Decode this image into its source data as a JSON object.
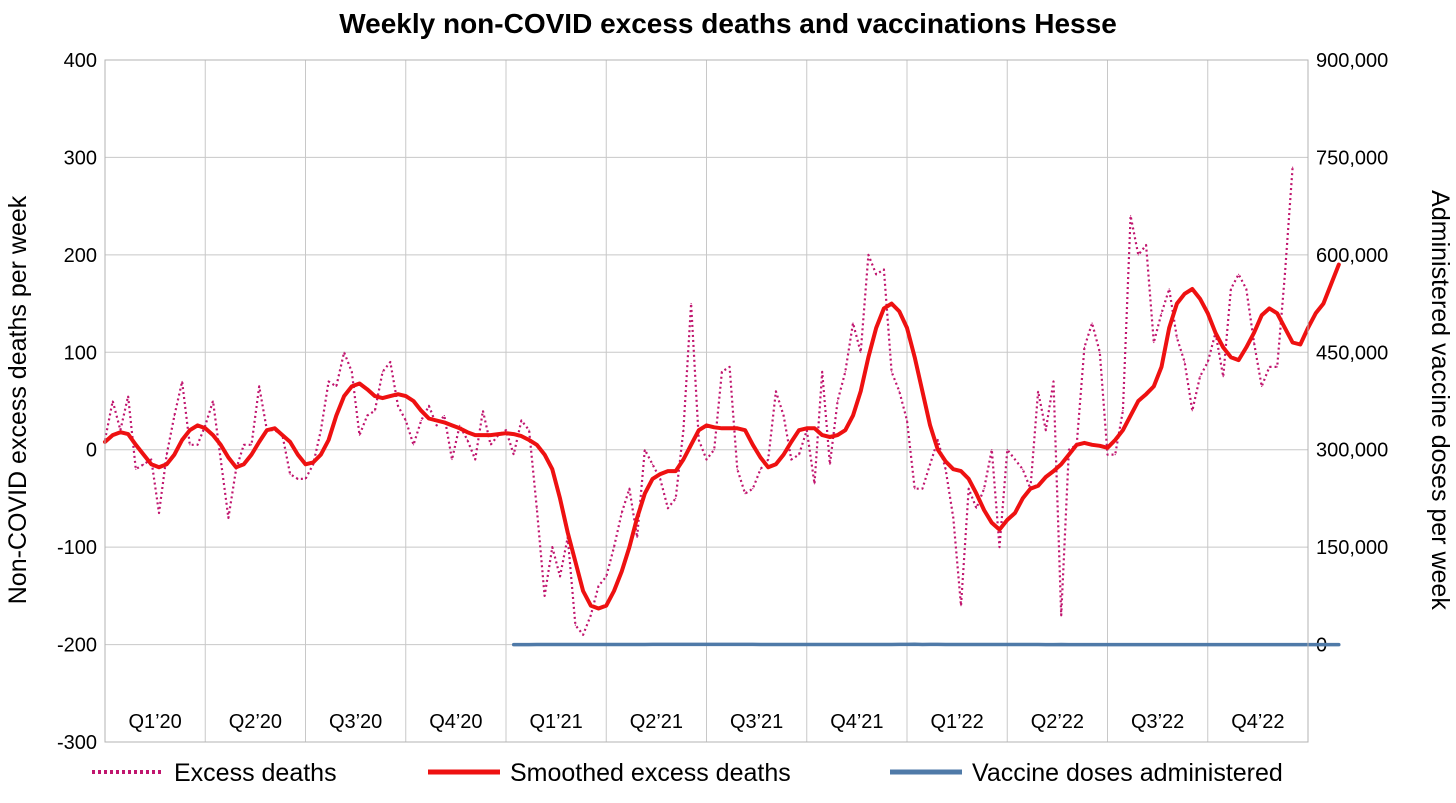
{
  "chart_data": {
    "type": "line",
    "title": "Weekly non-COVID excess deaths and vaccinations Hesse",
    "ylabel": "Non-COVID excess deaths per week",
    "y2label": "Administered vaccine doses per week",
    "ylim": [
      -300,
      400
    ],
    "y2lim": [
      -150000,
      900000
    ],
    "yticks": [
      -300,
      -200,
      -100,
      0,
      100,
      200,
      300,
      400
    ],
    "ytick_labels": [
      "-300",
      "-200",
      "-100",
      "0",
      "100",
      "200",
      "300",
      "400"
    ],
    "y2ticks": [
      0,
      150000,
      300000,
      450000,
      600000,
      750000,
      900000
    ],
    "y2tick_labels": [
      "0",
      "150,000",
      "300,000",
      "450,000",
      "600,000",
      "750,000",
      "900,000"
    ],
    "quarters": [
      "Q1’20",
      "Q2’20",
      "Q3’20",
      "Q4’20",
      "Q1’21",
      "Q2’21",
      "Q3’21",
      "Q4’21",
      "Q1’22",
      "Q2’22",
      "Q3’22",
      "Q4’22"
    ],
    "grid": true,
    "legend_position": "bottom",
    "series": [
      {
        "name": "Excess deaths",
        "color": "#c0156e",
        "style": "dotted",
        "axis": "left",
        "x_start_week": 0,
        "values": [
          10,
          50,
          20,
          55,
          -20,
          -15,
          -10,
          -65,
          -5,
          35,
          70,
          5,
          5,
          25,
          50,
          -10,
          -70,
          -20,
          5,
          5,
          65,
          20,
          20,
          15,
          -25,
          -30,
          -30,
          -15,
          20,
          70,
          65,
          100,
          80,
          15,
          35,
          40,
          80,
          90,
          45,
          30,
          5,
          30,
          45,
          25,
          35,
          -10,
          25,
          10,
          -10,
          40,
          5,
          15,
          20,
          -5,
          30,
          20,
          -60,
          -150,
          -100,
          -130,
          -90,
          -180,
          -190,
          -170,
          -140,
          -130,
          -100,
          -65,
          -40,
          -90,
          0,
          -15,
          -30,
          -60,
          -50,
          20,
          150,
          10,
          -10,
          0,
          80,
          85,
          -20,
          -45,
          -40,
          -20,
          -10,
          60,
          35,
          -10,
          -5,
          20,
          -35,
          80,
          -15,
          50,
          80,
          130,
          100,
          200,
          180,
          185,
          80,
          60,
          30,
          -40,
          -40,
          -15,
          10,
          -20,
          -70,
          -160,
          -40,
          -60,
          -40,
          0,
          -100,
          0,
          -10,
          -20,
          -40,
          60,
          20,
          70,
          -170,
          0,
          5,
          105,
          130,
          100,
          -5,
          -5,
          40,
          240,
          200,
          210,
          110,
          140,
          165,
          115,
          90,
          40,
          75,
          90,
          120,
          75,
          165,
          180,
          165,
          110,
          65,
          85,
          85,
          180,
          290
        ]
      },
      {
        "name": "Smoothed excess deaths",
        "color": "#ee1111",
        "style": "solid",
        "axis": "left",
        "x_start_week": 0,
        "values": [
          8,
          15,
          18,
          16,
          5,
          -5,
          -15,
          -18,
          -15,
          -5,
          10,
          20,
          25,
          22,
          15,
          5,
          -8,
          -18,
          -15,
          -5,
          8,
          20,
          22,
          15,
          8,
          -5,
          -15,
          -13,
          -5,
          10,
          35,
          55,
          65,
          68,
          62,
          55,
          53,
          55,
          57,
          55,
          50,
          40,
          32,
          30,
          28,
          25,
          22,
          18,
          15,
          15,
          15,
          16,
          17,
          16,
          14,
          10,
          5,
          -5,
          -20,
          -50,
          -85,
          -115,
          -145,
          -160,
          -163,
          -160,
          -145,
          -125,
          -100,
          -70,
          -45,
          -30,
          -25,
          -22,
          -22,
          -10,
          5,
          20,
          25,
          23,
          22,
          22,
          22,
          20,
          5,
          -8,
          -18,
          -15,
          -5,
          8,
          20,
          22,
          22,
          15,
          13,
          15,
          20,
          35,
          60,
          95,
          125,
          145,
          150,
          142,
          125,
          95,
          60,
          25,
          0,
          -12,
          -20,
          -22,
          -30,
          -45,
          -62,
          -75,
          -82,
          -72,
          -65,
          -50,
          -40,
          -37,
          -28,
          -22,
          -15,
          -5,
          5,
          7,
          5,
          4,
          2,
          10,
          20,
          35,
          50,
          57,
          65,
          85,
          125,
          150,
          160,
          165,
          155,
          140,
          120,
          105,
          95,
          92,
          105,
          120,
          138,
          145,
          140,
          125,
          110,
          108,
          125,
          140,
          150,
          170,
          190
        ]
      },
      {
        "name": "Vaccine doses administered",
        "color": "#4f7aa8",
        "style": "solid",
        "axis": "right",
        "x_start_week": 53,
        "values": [
          0,
          5,
          15,
          45,
          55,
          35,
          38,
          45,
          55,
          60,
          55,
          62,
          75,
          78,
          80,
          95,
          120,
          165,
          200,
          235,
          250,
          250,
          240,
          245,
          265,
          305,
          300,
          285,
          265,
          255,
          255,
          195,
          160,
          135,
          110,
          95,
          90,
          88,
          70,
          75,
          78,
          75,
          65,
          60,
          58,
          70,
          72,
          70,
          95,
          130,
          215,
          310,
          435,
          130,
          195,
          225,
          180,
          125,
          90,
          75,
          70,
          50,
          55,
          55,
          58,
          55,
          58,
          52,
          52,
          32,
          25,
          35,
          28,
          22,
          20,
          15,
          12,
          14,
          12,
          10,
          10,
          12,
          12,
          14,
          13,
          12,
          10,
          8,
          8,
          7,
          7,
          6,
          6,
          8,
          12,
          18,
          20,
          30,
          32,
          28,
          20,
          30,
          25,
          20,
          15,
          12,
          10,
          2
        ]
      }
    ]
  }
}
